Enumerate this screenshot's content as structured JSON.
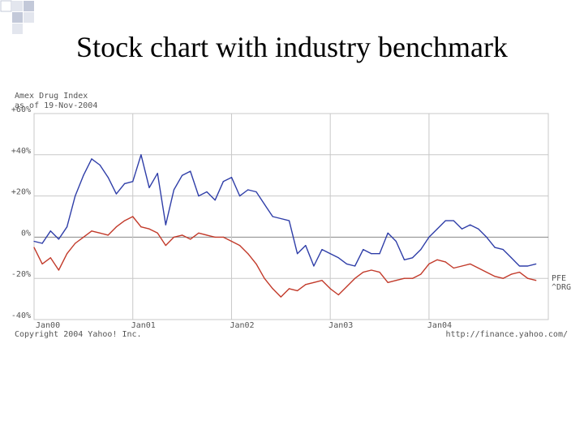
{
  "slide": {
    "title": "Stock chart with industry benchmark"
  },
  "colors": {
    "background": "#ffffff",
    "plot_frame": "#ffffff",
    "grid": "#c8c8c8",
    "zero_line": "#888888",
    "text": "#555555",
    "series_pfe": "#2f3ea8",
    "series_index": "#c23a2a",
    "deco_square_light": "#e3e6ee",
    "deco_square_mid": "#c3c9d9"
  },
  "chart_data": {
    "type": "line",
    "title_lines": [
      "Amex Drug Index",
      "as of 19-Nov-2004"
    ],
    "y_ticks": [
      "+60%",
      "+40%",
      "+20%",
      "0%",
      "-20%",
      "-40%"
    ],
    "y_tick_values": [
      60,
      40,
      20,
      0,
      -20,
      -40
    ],
    "ylim": [
      -40,
      60
    ],
    "x_ticks": [
      "Jan00",
      "Jan01",
      "Jan02",
      "Jan03",
      "Jan04"
    ],
    "x_tick_values": [
      0,
      12,
      24,
      36,
      48
    ],
    "xlim": [
      0,
      62.5
    ],
    "grid": true,
    "footer_left": "Copyright 2004 Yahoo! Inc.",
    "footer_right": "http://finance.yahoo.com/",
    "series": [
      {
        "name": "PFE",
        "color": "#2f3ea8",
        "x": [
          0,
          1,
          2,
          3,
          4,
          5,
          6,
          7,
          8,
          9,
          10,
          11,
          12,
          13,
          14,
          15,
          16,
          17,
          18,
          19,
          20,
          21,
          22,
          23,
          24,
          25,
          26,
          27,
          28,
          29,
          30,
          31,
          32,
          33,
          34,
          35,
          36,
          37,
          38,
          39,
          40,
          41,
          42,
          43,
          44,
          45,
          46,
          47,
          48,
          49,
          50,
          51,
          52,
          53,
          54,
          55,
          56,
          57,
          58,
          59,
          60,
          61
        ],
        "values": [
          -2,
          -3,
          3,
          -1,
          5,
          20,
          30,
          38,
          35,
          29,
          21,
          26,
          27,
          40,
          24,
          31,
          6,
          23,
          30,
          32,
          20,
          22,
          18,
          27,
          29,
          20,
          23,
          22,
          16,
          10,
          9,
          8,
          -8,
          -4,
          -14,
          -6,
          -8,
          -10,
          -13,
          -14,
          -6,
          -8,
          -8,
          2,
          -2,
          -11,
          -10,
          -6,
          0,
          4,
          8,
          8,
          4,
          6,
          4,
          0,
          -5,
          -6,
          -10,
          -14,
          -14,
          -13
        ],
        "end_label": "PFE"
      },
      {
        "name": "^DRG",
        "color": "#c23a2a",
        "x": [
          0,
          1,
          2,
          3,
          4,
          5,
          6,
          7,
          8,
          9,
          10,
          11,
          12,
          13,
          14,
          15,
          16,
          17,
          18,
          19,
          20,
          21,
          22,
          23,
          24,
          25,
          26,
          27,
          28,
          29,
          30,
          31,
          32,
          33,
          34,
          35,
          36,
          37,
          38,
          39,
          40,
          41,
          42,
          43,
          44,
          45,
          46,
          47,
          48,
          49,
          50,
          51,
          52,
          53,
          54,
          55,
          56,
          57,
          58,
          59,
          60,
          61
        ],
        "values": [
          -5,
          -13,
          -10,
          -16,
          -8,
          -3,
          0,
          3,
          2,
          1,
          5,
          8,
          10,
          5,
          4,
          2,
          -4,
          0,
          1,
          -1,
          2,
          1,
          0,
          0,
          -2,
          -4,
          -8,
          -13,
          -20,
          -25,
          -29,
          -25,
          -26,
          -23,
          -22,
          -21,
          -25,
          -28,
          -24,
          -20,
          -17,
          -16,
          -17,
          -22,
          -21,
          -20,
          -20,
          -18,
          -13,
          -11,
          -12,
          -15,
          -14,
          -13,
          -15,
          -17,
          -19,
          -20,
          -18,
          -17,
          -20,
          -21
        ],
        "end_label": "^DRG"
      }
    ]
  }
}
